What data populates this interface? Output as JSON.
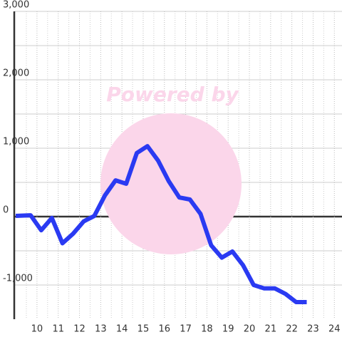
{
  "chart_data": {
    "type": "line",
    "watermark": "Powered by",
    "x": [
      9.0,
      9.7,
      10.2,
      10.7,
      11.2,
      11.7,
      12.2,
      12.7,
      13.2,
      13.7,
      14.2,
      14.7,
      15.2,
      15.7,
      16.2,
      16.7,
      17.2,
      17.7,
      18.2,
      18.7,
      19.2,
      19.7,
      20.2,
      20.7,
      21.2,
      21.7,
      22.2,
      22.7
    ],
    "series": [
      {
        "color": "#2a3af2",
        "values": [
          10,
          20,
          -200,
          -20,
          -390,
          -250,
          -70,
          10,
          310,
          530,
          480,
          930,
          1030,
          820,
          520,
          280,
          250,
          40,
          -420,
          -600,
          -510,
          -710,
          -1000,
          -1050,
          -1050,
          -1130,
          -1250,
          -1250
        ]
      }
    ],
    "xlim": [
      8.93,
      24.36
    ],
    "xticks": [
      10,
      11,
      12,
      13,
      14,
      15,
      16,
      17,
      18,
      19,
      20,
      21,
      22,
      23,
      24
    ],
    "x_minor_ticks": [
      9.5,
      10.5,
      11.5,
      12.5,
      13.5,
      14.5,
      15.5,
      16.5,
      17.5,
      18.5,
      19.5,
      20.5,
      21.5,
      22.5,
      23.5
    ],
    "ylim": [
      -1500,
      3000
    ],
    "yticks": [
      {
        "value": -1000,
        "label": "-1,000"
      },
      0,
      {
        "value": 1000,
        "label": "1,000"
      },
      {
        "value": 2000,
        "label": "2,000"
      },
      {
        "value": 3000,
        "label": "3,000"
      }
    ],
    "y_minor_ticks": [
      -500,
      500,
      1500,
      2500
    ],
    "grid": true
  }
}
